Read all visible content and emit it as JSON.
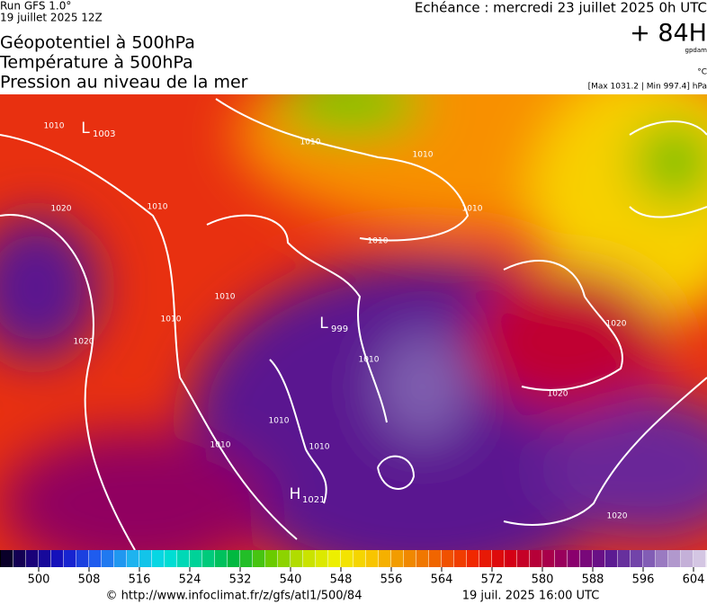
{
  "header": {
    "run": "Run GFS 1.0°",
    "run_date": "19 juillet 2025 12Z",
    "titles": [
      "Géopotentiel à 500hPa",
      "Température à 500hPa",
      "Pression au niveau de la mer"
    ],
    "valid": "Echéance : mercredi 23 juillet 2025 0h UTC",
    "lead": "+ 84H",
    "unit_geo": "gpdam",
    "unit_temp": "°C",
    "pressure_range": "[Max 1031.2 | Min 997.4] hPa"
  },
  "map": {
    "isobar_labels": [
      1010,
      1010,
      1010,
      1010,
      1010,
      1010,
      1010,
      1010,
      1010,
      1010,
      1010,
      1010,
      1020,
      1020,
      1020,
      1020,
      1020
    ],
    "pressure_centers": [
      {
        "type": "L",
        "value": 1003
      },
      {
        "type": "L",
        "value": 999
      },
      {
        "type": "H",
        "value": 1021
      }
    ]
  },
  "colorbar": {
    "ticks": [
      500,
      508,
      516,
      524,
      532,
      540,
      548,
      556,
      564,
      572,
      580,
      588,
      596,
      604
    ],
    "palette": [
      "#000000",
      "#1a0070",
      "#1414c8",
      "#2060f0",
      "#20b0f0",
      "#00e0e0",
      "#00d090",
      "#00b840",
      "#60c800",
      "#c0e000",
      "#f0f000",
      "#f8c800",
      "#f09000",
      "#f06000",
      "#f02800",
      "#d80010",
      "#b00040",
      "#880070",
      "#5a1890",
      "#7850b0",
      "#b8a0d0",
      "#e4dcee"
    ]
  },
  "footer": {
    "source": "© http://www.infoclimat.fr/z/gfs/atl1/500/84",
    "generated": "19 juil. 2025 16:00 UTC"
  }
}
